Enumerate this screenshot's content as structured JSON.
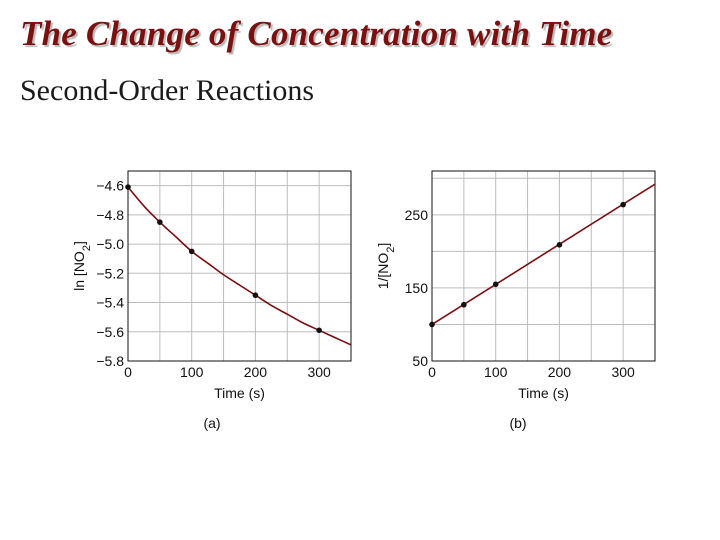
{
  "slide": {
    "title": "The Change of Concentration with Time",
    "subtitle": "Second-Order Reactions"
  },
  "colors": {
    "title": "#7a1010",
    "curve": "#7a0f12",
    "points": "#111111",
    "grid": "#bdbdbd"
  },
  "chart_data": [
    {
      "type": "line",
      "panel_label": "(a)",
      "xlabel": "Time (s)",
      "ylabel_main": "ln [NO",
      "ylabel_sub": "2",
      "ylabel_end": "]",
      "xlim": [
        0,
        350
      ],
      "ylim": [
        -5.8,
        -4.5
      ],
      "x_ticks": [
        0,
        100,
        200,
        300
      ],
      "x_tick_labels": [
        "0",
        "100",
        "200",
        "300"
      ],
      "y_ticks": [
        -4.6,
        -4.8,
        -5.0,
        -5.2,
        -5.4,
        -5.6,
        -5.8
      ],
      "y_tick_labels": [
        "−4.6",
        "−4.8",
        "−5.0",
        "−5.2",
        "−5.4",
        "−5.6",
        "−5.8"
      ],
      "grid": true,
      "points": {
        "x": [
          0,
          50,
          100,
          200,
          300
        ],
        "y": [
          -4.61,
          -4.85,
          -5.05,
          -5.35,
          -5.59
        ]
      },
      "curve": {
        "x": [
          0,
          25,
          50,
          75,
          100,
          125,
          150,
          175,
          200,
          225,
          250,
          275,
          300,
          325,
          350
        ],
        "y": [
          -4.61,
          -4.74,
          -4.85,
          -4.95,
          -5.05,
          -5.13,
          -5.21,
          -5.28,
          -5.35,
          -5.42,
          -5.48,
          -5.54,
          -5.59,
          -5.64,
          -5.69
        ]
      }
    },
    {
      "type": "line",
      "panel_label": "(b)",
      "xlabel": "Time (s)",
      "ylabel_main": "1/[NO",
      "ylabel_sub": "2",
      "ylabel_end": "]",
      "xlim": [
        0,
        350
      ],
      "ylim": [
        50,
        310
      ],
      "x_ticks": [
        0,
        100,
        200,
        300
      ],
      "x_tick_labels": [
        "0",
        "100",
        "200",
        "300"
      ],
      "y_ticks": [
        50,
        150,
        250
      ],
      "y_tick_labels": [
        "50",
        "150",
        "250"
      ],
      "y_grid": [
        100,
        150,
        200,
        250,
        300
      ],
      "grid": true,
      "points": {
        "x": [
          0,
          50,
          100,
          200,
          300
        ],
        "y": [
          100,
          127,
          155,
          209,
          264
        ]
      },
      "fit": {
        "x": [
          0,
          350
        ],
        "y": [
          100,
          292
        ]
      }
    }
  ]
}
